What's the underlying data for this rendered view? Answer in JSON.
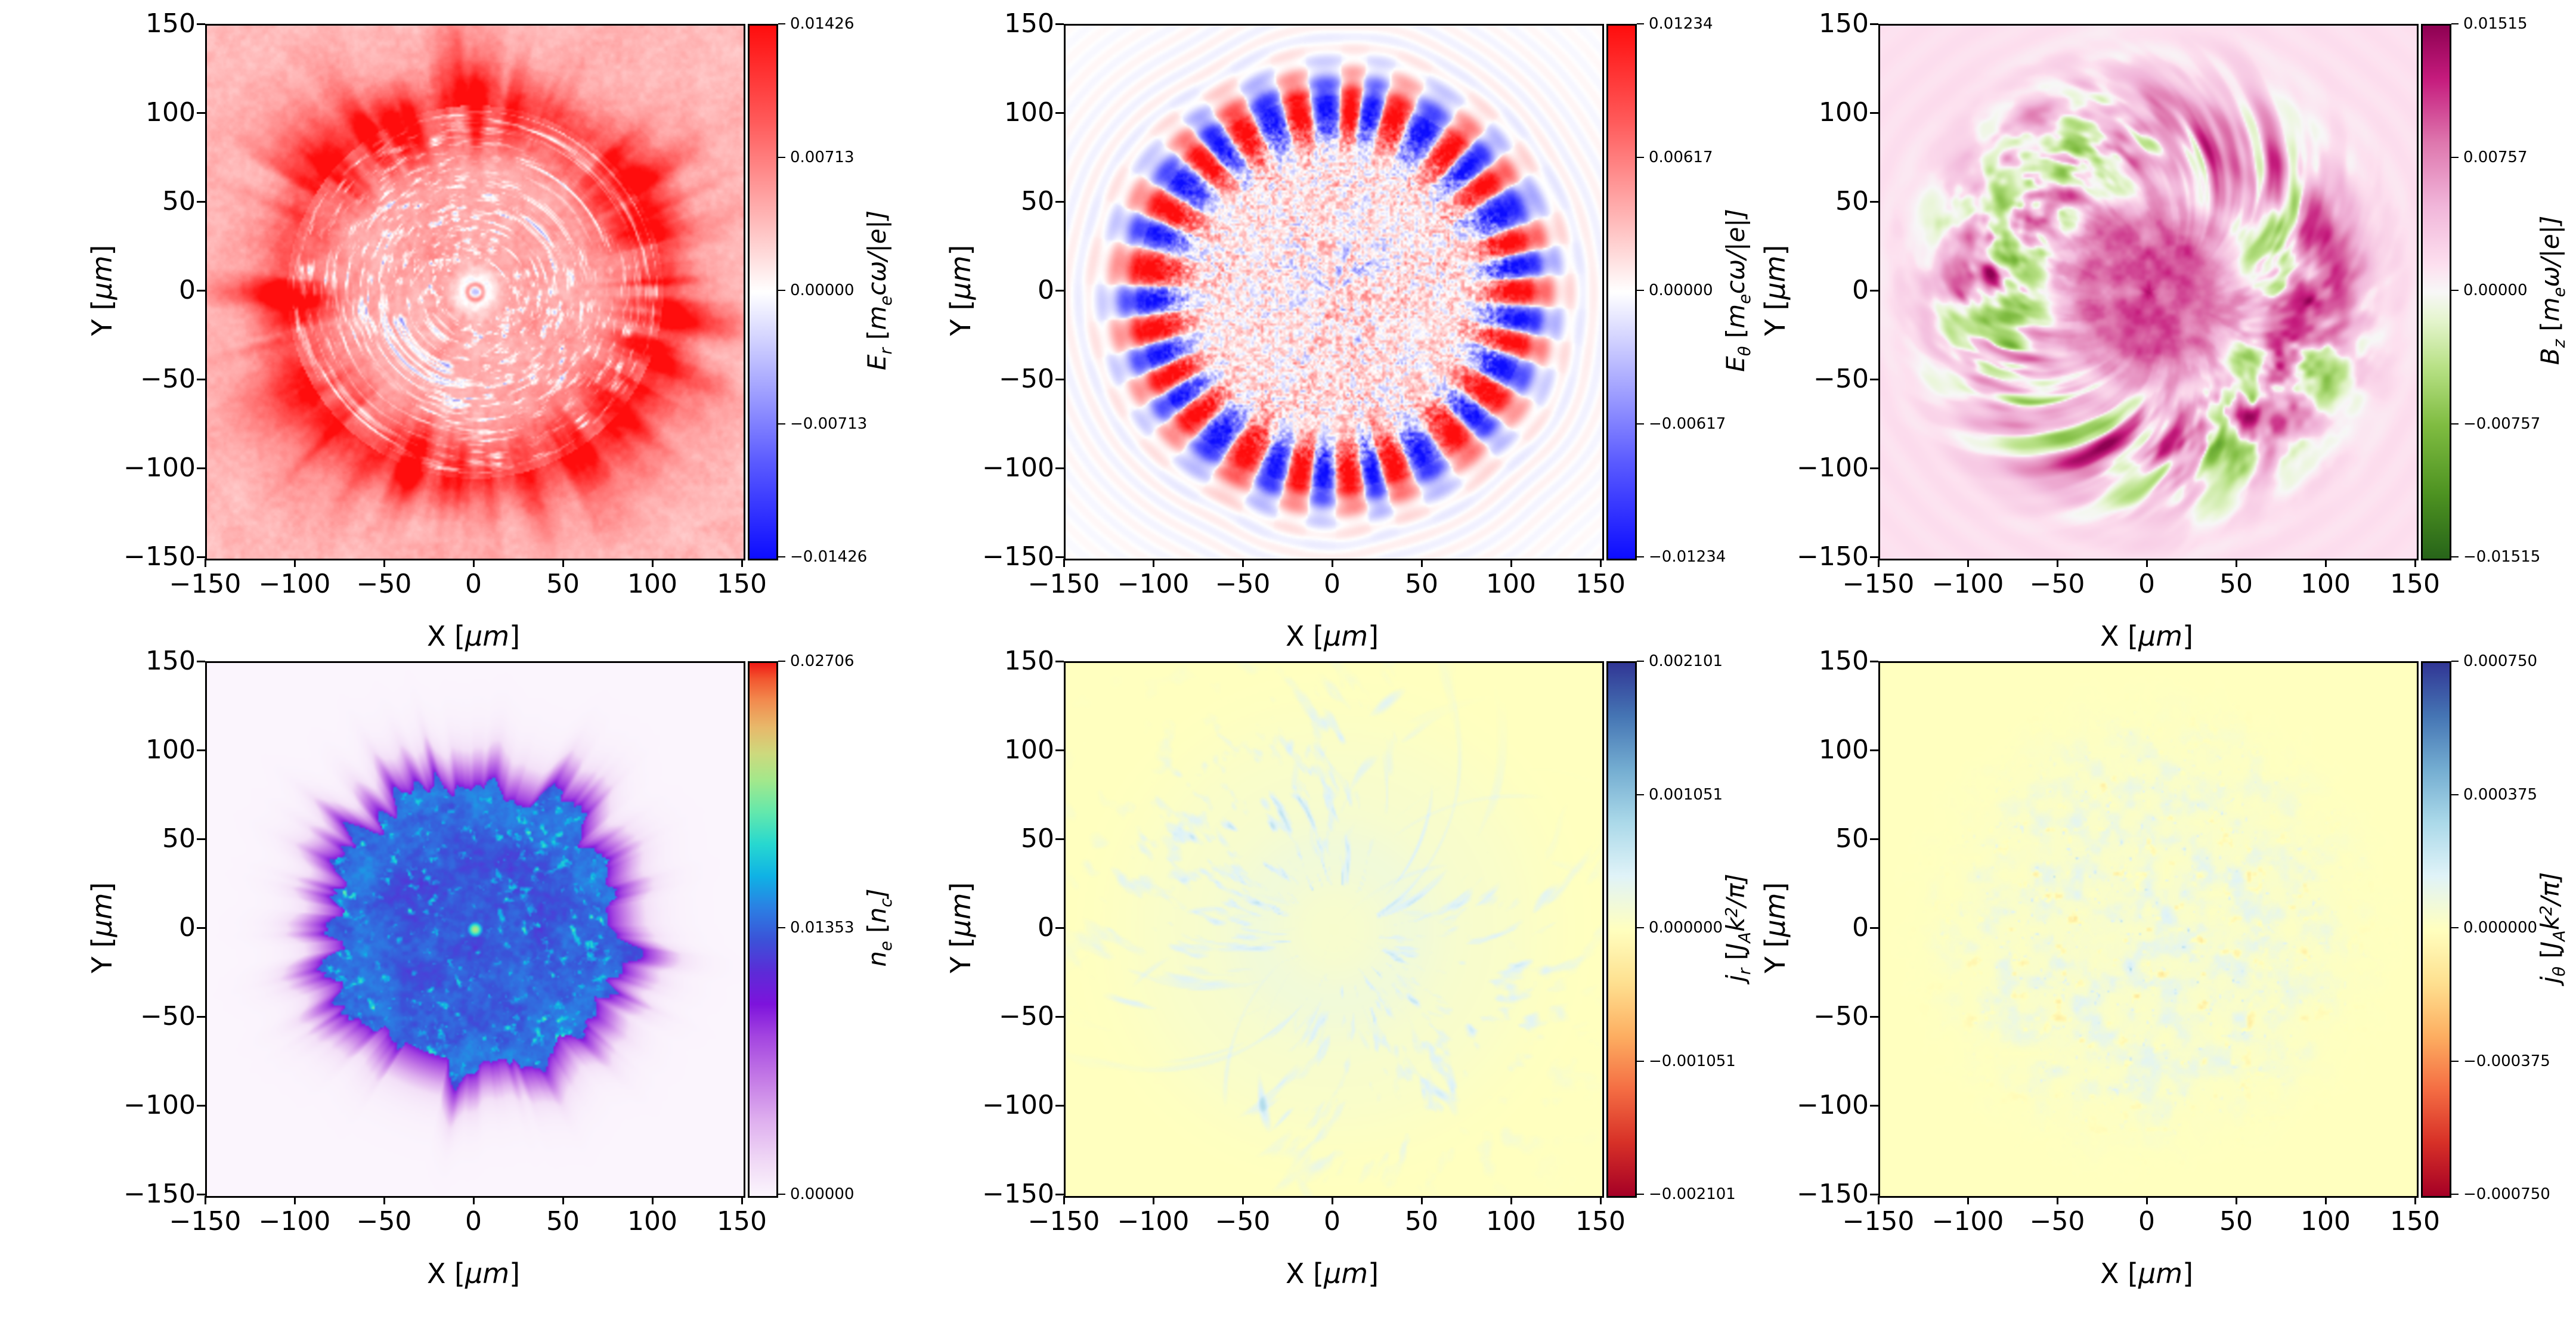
{
  "figure": {
    "background": "#ffffff",
    "grid": "2 rows x 3 columns of simulated field maps",
    "text_color": "#000000"
  },
  "chart_data": {
    "type": "heatmap",
    "layout": "grid-2x3",
    "x_axis": {
      "label": "X  [μm]",
      "range": [
        -150,
        150
      ],
      "tick_labels": [
        "−150",
        "−100",
        "−50",
        "0",
        "50",
        "100",
        "150"
      ]
    },
    "y_axis": {
      "label": "Y  [μm]",
      "range": [
        -150,
        150
      ],
      "tick_labels": [
        "150",
        "100",
        "50",
        "0",
        "−50",
        "−100",
        "−150"
      ]
    },
    "xlabel_parts": [
      [
        "X  [",
        ""
      ],
      [
        "μm",
        "i"
      ],
      [
        "]",
        ""
      ]
    ],
    "ylabel_parts": [
      [
        "Y  [",
        ""
      ],
      [
        "μm",
        "i"
      ],
      [
        "]",
        ""
      ]
    ],
    "colormaps": {
      "bwr": [
        [
          0,
          "#0d0dff"
        ],
        [
          0.18,
          "#5a5aff"
        ],
        [
          0.36,
          "#b8b8ff"
        ],
        [
          0.5,
          "#ffffff"
        ],
        [
          0.64,
          "#ffb6b6"
        ],
        [
          0.82,
          "#ff5a5a"
        ],
        [
          1,
          "#ff0d0d"
        ]
      ],
      "piyg": [
        [
          0,
          "#276419"
        ],
        [
          0.12,
          "#4d9221"
        ],
        [
          0.25,
          "#7fbc41"
        ],
        [
          0.36,
          "#b8e186"
        ],
        [
          0.45,
          "#e6f5d0"
        ],
        [
          0.5,
          "#f7f7f7"
        ],
        [
          0.55,
          "#fde0ef"
        ],
        [
          0.66,
          "#f1b6da"
        ],
        [
          0.78,
          "#de77ae"
        ],
        [
          0.9,
          "#c51b7d"
        ],
        [
          1,
          "#8e0152"
        ]
      ],
      "rain": [
        [
          0,
          "#fbf5fd"
        ],
        [
          0.06,
          "#f1dbf6"
        ],
        [
          0.14,
          "#dfb0ef"
        ],
        [
          0.22,
          "#c47ae6"
        ],
        [
          0.3,
          "#a344e0"
        ],
        [
          0.36,
          "#7d13dc"
        ],
        [
          0.42,
          "#5c2bd7"
        ],
        [
          0.48,
          "#3b52d8"
        ],
        [
          0.54,
          "#2b7fe3"
        ],
        [
          0.6,
          "#0fb2e5"
        ],
        [
          0.66,
          "#27d8d0"
        ],
        [
          0.72,
          "#63e8ac"
        ],
        [
          0.78,
          "#a3e88b"
        ],
        [
          0.83,
          "#cdd97d"
        ],
        [
          0.88,
          "#e8b86a"
        ],
        [
          0.93,
          "#f28a4e"
        ],
        [
          0.97,
          "#f2562f"
        ],
        [
          1,
          "#f01a14"
        ]
      ],
      "rdylbu": [
        [
          0,
          "#a50026"
        ],
        [
          0.1,
          "#d73027"
        ],
        [
          0.2,
          "#f46d43"
        ],
        [
          0.3,
          "#fdae61"
        ],
        [
          0.4,
          "#fee090"
        ],
        [
          0.5,
          "#ffffbf"
        ],
        [
          0.6,
          "#e0f3f8"
        ],
        [
          0.7,
          "#abd9e9"
        ],
        [
          0.8,
          "#74add1"
        ],
        [
          0.9,
          "#4575b4"
        ],
        [
          1,
          "#313695"
        ]
      ]
    },
    "panels": [
      {
        "id": "er",
        "quantity": "E_r",
        "colorbar_label": "E_r [m_ecω/|e|]",
        "cmap": "bwr",
        "norm": "diverging",
        "vmin": -0.01426,
        "vmax": 0.01426,
        "cbar_parts": [
          [
            "E",
            "i"
          ],
          [
            "r",
            "is"
          ],
          [
            " [",
            ""
          ],
          [
            "m",
            "i"
          ],
          [
            "e",
            "is"
          ],
          [
            "cω/|e|]",
            "i"
          ]
        ],
        "cbar_ticks": [
          {
            "l": "0.01426",
            "p": 0
          },
          {
            "l": "0.00713",
            "p": 0.25
          },
          {
            "l": "0.00000",
            "p": 0.5
          },
          {
            "l": "−0.00713",
            "p": 0.75
          },
          {
            "l": "−0.01426",
            "p": 1
          }
        ],
        "pattern": "white background; mottled pink/red disk with light-blue concentric speckled arcs, strong red blob ring near r≈100 μm, red spokes outside, small blue spot with tiny red ring at center"
      },
      {
        "id": "et",
        "quantity": "E_theta",
        "colorbar_label": "E_θ [m_ecω/|e|]",
        "cmap": "bwr",
        "norm": "diverging",
        "vmin": -0.01234,
        "vmax": 0.01234,
        "cbar_parts": [
          [
            "E",
            "i"
          ],
          [
            "θ",
            "is"
          ],
          [
            " [",
            ""
          ],
          [
            "m",
            "i"
          ],
          [
            "e",
            "is"
          ],
          [
            "cω/|e|]",
            "i"
          ]
        ],
        "cbar_ticks": [
          {
            "l": "0.01234",
            "p": 0
          },
          {
            "l": "0.00617",
            "p": 0.25
          },
          {
            "l": "0.00000",
            "p": 0.5
          },
          {
            "l": "−0.00617",
            "p": 0.75
          },
          {
            "l": "−0.01234",
            "p": 1
          }
        ],
        "pattern": "fine red/blue speckled disk r≲105 μm with blue petal shapes at center and strong alternating red/blue azimuthal lobes at the rim; faint ripples outside"
      },
      {
        "id": "bz",
        "quantity": "B_z",
        "colorbar_label": "B_z [m_eω/|e|]",
        "cmap": "piyg",
        "norm": "diverging",
        "vmin": -0.01515,
        "vmax": 0.01515,
        "cbar_parts": [
          [
            "B",
            "i"
          ],
          [
            "z",
            "is"
          ],
          [
            " [",
            ""
          ],
          [
            "m",
            "i"
          ],
          [
            "e",
            "is"
          ],
          [
            "ω/|e|]",
            "i"
          ]
        ],
        "cbar_ticks": [
          {
            "l": "0.01515",
            "p": 0
          },
          {
            "l": "0.00757",
            "p": 0.25
          },
          {
            "l": "0.00000",
            "p": 0.5
          },
          {
            "l": "−0.00757",
            "p": 0.75
          },
          {
            "l": "−0.01515",
            "p": 1
          }
        ],
        "pattern": "pale pink background; magenta mottled core r≲55 μm, whitish moat, ring of alternating green and magenta flame-like patches r≈60–115 μm, faint pink ripples outside"
      },
      {
        "id": "ne",
        "quantity": "n_e",
        "colorbar_label": "n_e [n_c]",
        "cmap": "rain",
        "norm": "positive",
        "vmin": 0.0,
        "vmax": 0.02706,
        "cbar_parts": [
          [
            "n",
            "i"
          ],
          [
            "e",
            "is"
          ],
          [
            " [",
            ""
          ],
          [
            "n",
            "i"
          ],
          [
            "c",
            "is"
          ],
          [
            "]",
            "i"
          ]
        ],
        "cbar_ticks": [
          {
            "l": "0.02706",
            "p": 0
          },
          {
            "l": "0.01353",
            "p": 0.5
          },
          {
            "l": "0.00000",
            "p": 1
          }
        ],
        "pattern": "pale lavender background; dense blue-indigo plasma disk r≈95 μm with violet spiky fringe, cyan-green speckles and short swirl streaks inside, bright green dot at center"
      },
      {
        "id": "jr",
        "quantity": "j_r",
        "colorbar_label": "j_r [J_Ak²/π]",
        "cmap": "rdylbu",
        "norm": "diverging",
        "vmin": -0.002101,
        "vmax": 0.002101,
        "cbar_parts": [
          [
            "j",
            "i"
          ],
          [
            "r",
            "is"
          ],
          [
            " [",
            ""
          ],
          [
            "J",
            "i"
          ],
          [
            "A",
            "is"
          ],
          [
            "k",
            "i"
          ],
          [
            "2",
            "ip"
          ],
          [
            "/π]",
            "i"
          ]
        ],
        "cbar_ticks": [
          {
            "l": "0.002101",
            "p": 0
          },
          {
            "l": "0.001051",
            "p": 0.25
          },
          {
            "l": "0.000000",
            "p": 0.5
          },
          {
            "l": "−0.001051",
            "p": 0.75
          },
          {
            "l": "−0.002101",
            "p": 1
          }
        ],
        "pattern": "uniform pale-yellow background with very faint whitish disk and thin light-blue radial filaments; faint pale ring near the center"
      },
      {
        "id": "jt",
        "quantity": "j_theta",
        "colorbar_label": "j_θ [J_Ak²/π]",
        "cmap": "rdylbu",
        "norm": "diverging",
        "vmin": -0.00075,
        "vmax": 0.00075,
        "cbar_parts": [
          [
            "j",
            "i"
          ],
          [
            "θ",
            "is"
          ],
          [
            " [",
            ""
          ],
          [
            "J",
            "i"
          ],
          [
            "A",
            "is"
          ],
          [
            "k",
            "i"
          ],
          [
            "2",
            "ip"
          ],
          [
            "/π]",
            "i"
          ]
        ],
        "cbar_ticks": [
          {
            "l": "0.000750",
            "p": 0
          },
          {
            "l": "0.000375",
            "p": 0.25
          },
          {
            "l": "0.000000",
            "p": 0.5
          },
          {
            "l": "−0.000375",
            "p": 0.75
          },
          {
            "l": "−0.000750",
            "p": 1
          }
        ],
        "pattern": "pale-yellow background with soft light-blue cloudy mottling over the disk r≲105 μm, sparse faint orange wisps and a few small sharp blue streaks"
      }
    ]
  }
}
